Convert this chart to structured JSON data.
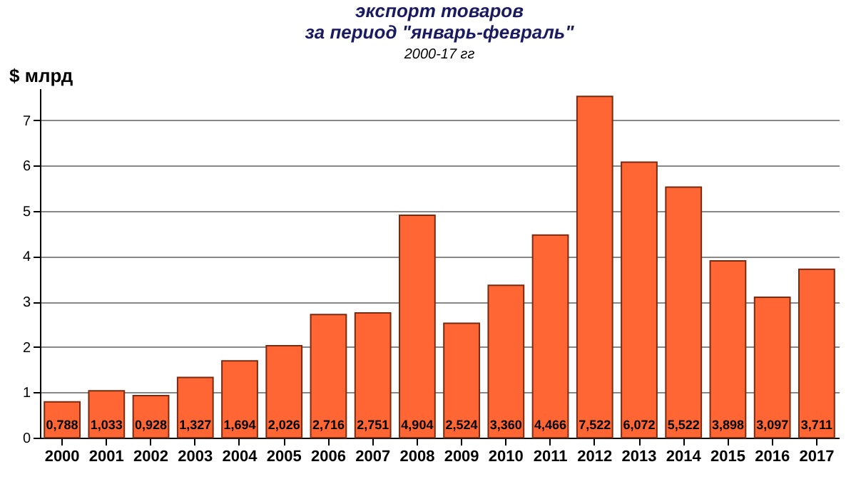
{
  "chart_data": {
    "type": "bar",
    "title": [
      "экспорт товаров",
      "за период  \"январь-февраль\""
    ],
    "subtitle": "2000-17 гг",
    "ylabel": "$ млрд",
    "categories": [
      "2000",
      "2001",
      "2002",
      "2003",
      "2004",
      "2005",
      "2006",
      "2007",
      "2008",
      "2009",
      "2010",
      "2011",
      "2012",
      "2013",
      "2014",
      "2015",
      "2016",
      "2017"
    ],
    "values": [
      0.788,
      1.033,
      0.928,
      1.327,
      1.694,
      2.026,
      2.716,
      2.751,
      4.904,
      2.524,
      3.36,
      4.466,
      7.522,
      6.072,
      5.522,
      3.898,
      3.097,
      3.711
    ],
    "value_labels": [
      "0,788",
      "1,033",
      "0,928",
      "1,327",
      "1,694",
      "2,026",
      "2,716",
      "2,751",
      "4,904",
      "2,524",
      "3,360",
      "4,466",
      "7,522",
      "6,072",
      "5,522",
      "3,898",
      "3,097",
      "3,711"
    ],
    "color": "#ff6633",
    "ylim": [
      0,
      7.7
    ],
    "yticks": [
      0,
      1,
      2,
      3,
      4,
      5,
      6,
      7
    ],
    "grid": "y"
  }
}
